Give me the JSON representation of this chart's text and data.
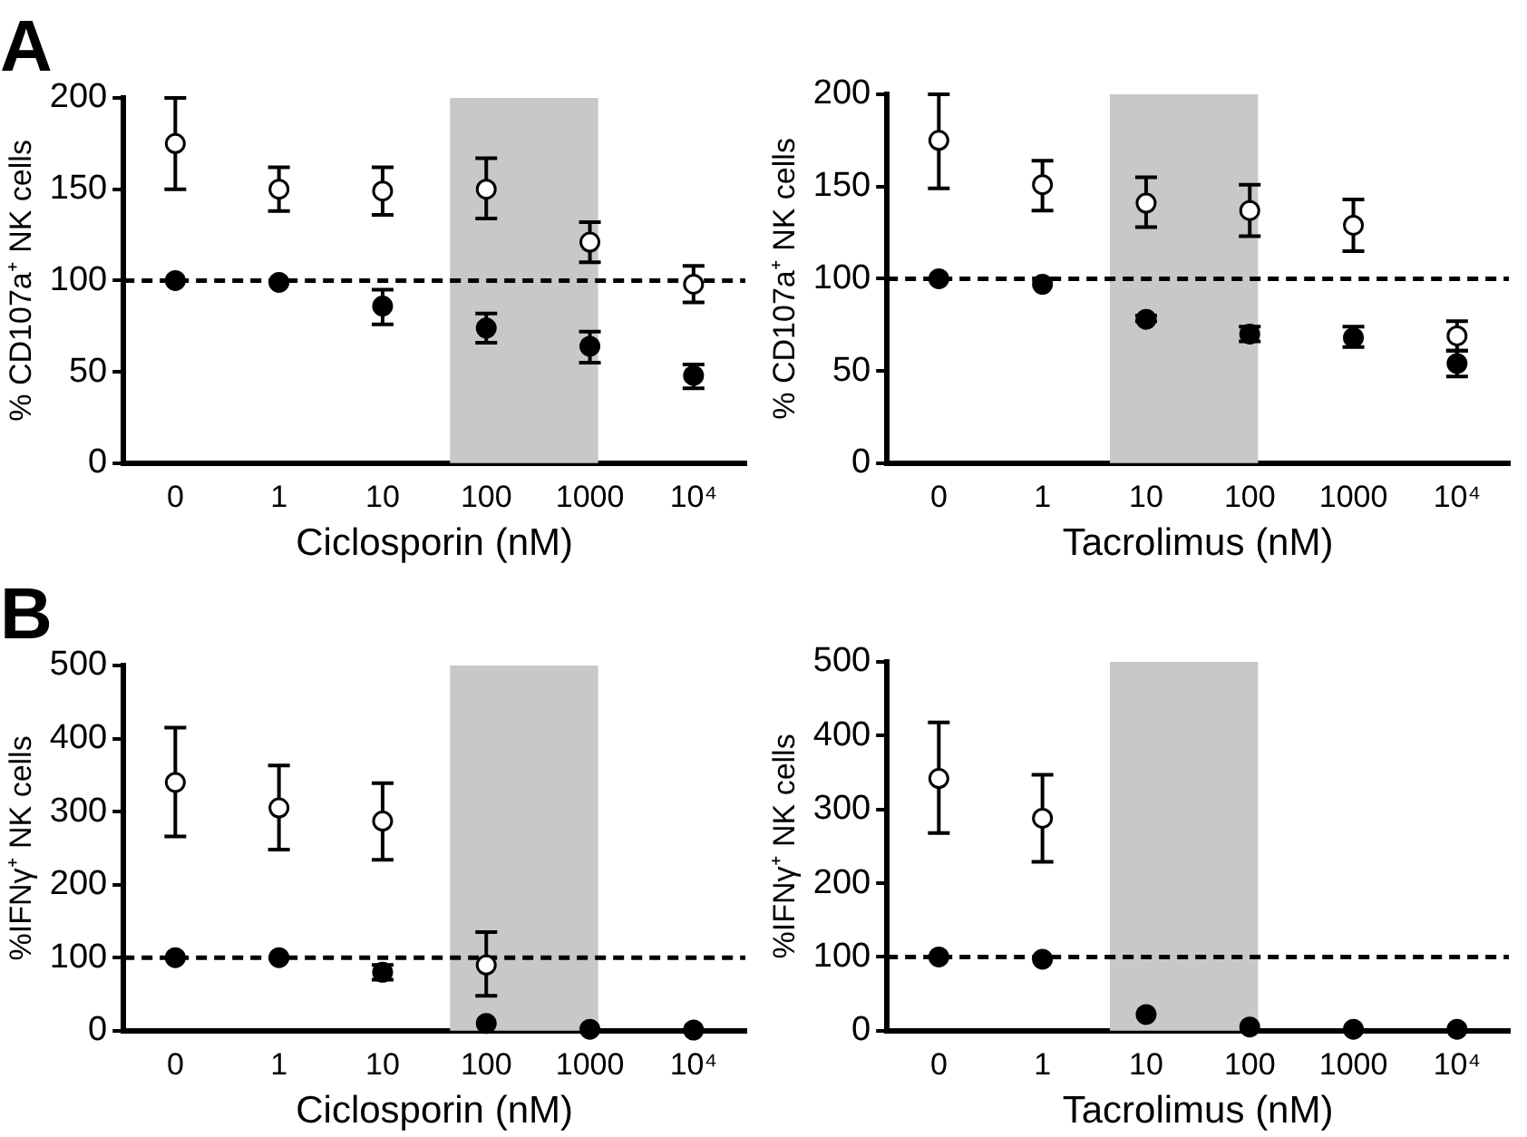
{
  "chart_data": [
    {
      "type": "scatter",
      "title": "A",
      "xlabel": "Ciclosporin (nM)",
      "ylabel": "% CD107a⁺ NK cells",
      "categories": [
        "0",
        "1",
        "10",
        "100",
        "1000",
        "10⁴"
      ],
      "ylim": [
        0,
        200
      ],
      "yticks": [
        0,
        50,
        100,
        150,
        200
      ],
      "grid": false,
      "legend": false,
      "marker": "circle",
      "series": [
        {
          "color": "#ffffff",
          "values": [
            175,
            150,
            149,
            150,
            121,
            98
          ],
          "errors": [
            [
              150,
              200
            ],
            [
              138,
              162
            ],
            [
              136,
              162
            ],
            [
              134,
              167
            ],
            [
              110,
              132
            ],
            [
              88,
              108
            ]
          ]
        },
        {
          "color": "#000000",
          "values": [
            100,
            99,
            86,
            74,
            64,
            48
          ],
          "errors": [
            null,
            null,
            [
              76,
              95
            ],
            [
              66,
              82
            ],
            [
              55,
              72
            ],
            [
              41,
              54
            ]
          ]
        }
      ],
      "ref_lines": [
        {
          "axis": "y",
          "value": 100,
          "color": "#000000",
          "line_style": "dashed"
        }
      ],
      "bands": [
        {
          "axis": "x",
          "from": "100",
          "to": "1000",
          "color": "#c8c8c8"
        }
      ]
    },
    {
      "type": "scatter",
      "xlabel": "Tacrolimus (nM)",
      "ylabel": "% CD107a⁺ NK cells",
      "categories": [
        "0",
        "1",
        "10",
        "100",
        "1000",
        "10⁴"
      ],
      "ylim": [
        0,
        200
      ],
      "yticks": [
        0,
        50,
        100,
        150,
        200
      ],
      "grid": false,
      "legend": false,
      "marker": "circle",
      "series": [
        {
          "color": "#ffffff",
          "values": [
            175,
            151,
            141,
            137,
            129,
            69
          ],
          "errors": [
            [
              149,
              200
            ],
            [
              137,
              164
            ],
            [
              128,
              155
            ],
            [
              123,
              151
            ],
            [
              115,
              143
            ],
            [
              61,
              77
            ]
          ]
        },
        {
          "color": "#000000",
          "values": [
            100,
            97,
            78,
            70,
            68,
            54
          ],
          "errors": [
            null,
            null,
            [
              77,
              80
            ],
            [
              66,
              74
            ],
            [
              63,
              74
            ],
            [
              47,
              61
            ]
          ]
        }
      ],
      "ref_lines": [
        {
          "axis": "y",
          "value": 100,
          "color": "#000000",
          "line_style": "dashed"
        }
      ],
      "bands": [
        {
          "axis": "x",
          "from": "10",
          "to": "100",
          "color": "#c8c8c8"
        }
      ]
    },
    {
      "type": "scatter",
      "title": "B",
      "xlabel": "Ciclosporin (nM)",
      "ylabel": "%IFNγ⁺ NK cells",
      "categories": [
        "0",
        "1",
        "10",
        "100",
        "1000",
        "10⁴"
      ],
      "ylim": [
        0,
        500
      ],
      "yticks": [
        0,
        100,
        200,
        300,
        400,
        500
      ],
      "grid": false,
      "legend": false,
      "marker": "circle",
      "series": [
        {
          "color": "#ffffff",
          "values": [
            340,
            305,
            287,
            90,
            null,
            null
          ],
          "errors": [
            [
              266,
              415
            ],
            [
              248,
              363
            ],
            [
              234,
              339
            ],
            [
              48,
              135
            ],
            null,
            null
          ]
        },
        {
          "color": "#000000",
          "values": [
            100,
            100,
            80,
            10,
            2,
            1
          ],
          "errors": [
            null,
            null,
            [
              70,
              90
            ],
            null,
            null,
            null
          ]
        }
      ],
      "ref_lines": [
        {
          "axis": "y",
          "value": 100,
          "color": "#000000",
          "line_style": "dashed"
        }
      ],
      "bands": [
        {
          "axis": "x",
          "from": "100",
          "to": "1000",
          "color": "#c8c8c8"
        }
      ]
    },
    {
      "type": "scatter",
      "xlabel": "Tacrolimus (nM)",
      "ylabel": "%IFNγ⁺ NK cells",
      "categories": [
        "0",
        "1",
        "10",
        "100",
        "1000",
        "10⁴"
      ],
      "ylim": [
        0,
        500
      ],
      "yticks": [
        0,
        100,
        200,
        300,
        400,
        500
      ],
      "grid": false,
      "legend": false,
      "marker": "circle",
      "series": [
        {
          "color": "#ffffff",
          "values": [
            342,
            288,
            null,
            null,
            null,
            null
          ],
          "errors": [
            [
              268,
              418
            ],
            [
              229,
              347
            ],
            null,
            null,
            null,
            null
          ]
        },
        {
          "color": "#000000",
          "values": [
            100,
            97,
            22,
            5,
            2,
            2
          ],
          "errors": [
            null,
            null,
            null,
            null,
            null,
            null
          ]
        }
      ],
      "ref_lines": [
        {
          "axis": "y",
          "value": 100,
          "color": "#000000",
          "line_style": "dashed"
        }
      ],
      "bands": [
        {
          "axis": "x",
          "from": "10",
          "to": "100",
          "color": "#c8c8c8"
        }
      ]
    }
  ]
}
